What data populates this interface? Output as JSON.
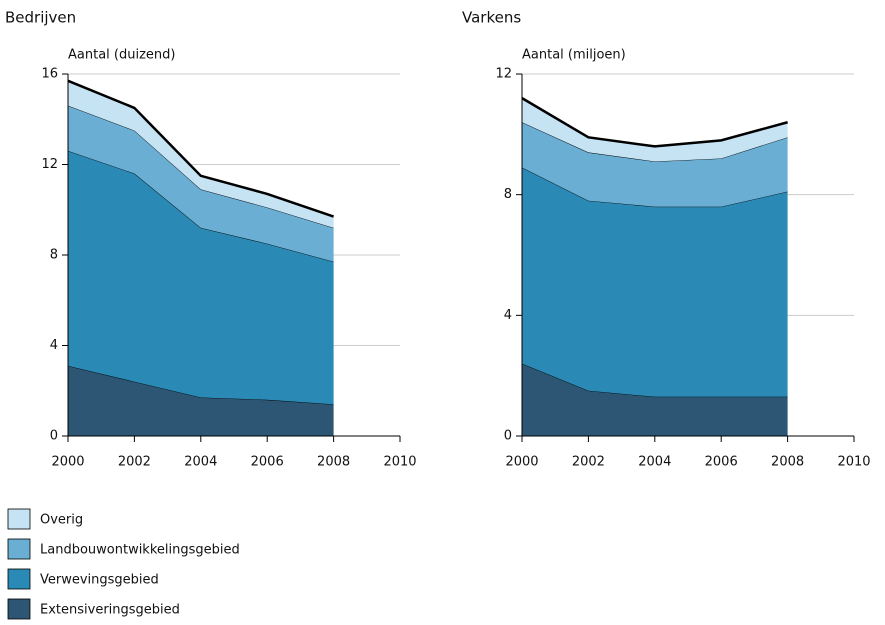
{
  "chart_data": [
    {
      "type": "area",
      "title": "Bedrijven",
      "ylabel": "Aantal (duizend)",
      "x": [
        2000,
        2002,
        2004,
        2006,
        2008
      ],
      "series": [
        {
          "name": "Extensiveringsgebied",
          "color": "#2c5673",
          "values": [
            3.1,
            2.4,
            1.7,
            1.6,
            1.4
          ]
        },
        {
          "name": "Verwevingsgebied",
          "color": "#2a8ab5",
          "values": [
            9.5,
            9.2,
            7.5,
            6.9,
            6.3
          ]
        },
        {
          "name": "Landbouwontwikkelingsgebied",
          "color": "#6aaed3",
          "values": [
            2.0,
            1.9,
            1.7,
            1.6,
            1.5
          ]
        },
        {
          "name": "Overig",
          "color": "#c6e3f4",
          "values": [
            1.1,
            1.0,
            0.6,
            0.6,
            0.5
          ]
        }
      ],
      "xlim": [
        2000,
        2010
      ],
      "xticks": [
        2000,
        2002,
        2004,
        2006,
        2008,
        2010
      ],
      "ylim": [
        0,
        16
      ],
      "yticks": [
        0,
        4,
        8,
        12,
        16
      ],
      "grid": true
    },
    {
      "type": "area",
      "title": "Varkens",
      "ylabel": "Aantal (miljoen)",
      "x": [
        2000,
        2002,
        2004,
        2006,
        2008
      ],
      "series": [
        {
          "name": "Extensiveringsgebied",
          "color": "#2c5673",
          "values": [
            2.4,
            1.5,
            1.3,
            1.3,
            1.3
          ]
        },
        {
          "name": "Verwevingsgebied",
          "color": "#2a8ab5",
          "values": [
            6.5,
            6.3,
            6.3,
            6.3,
            6.8
          ]
        },
        {
          "name": "Landbouwontwikkelingsgebied",
          "color": "#6aaed3",
          "values": [
            1.5,
            1.6,
            1.5,
            1.6,
            1.8
          ]
        },
        {
          "name": "Overig",
          "color": "#c6e3f4",
          "values": [
            0.8,
            0.5,
            0.5,
            0.6,
            0.5
          ]
        }
      ],
      "xlim": [
        2000,
        2010
      ],
      "xticks": [
        2000,
        2002,
        2004,
        2006,
        2008,
        2010
      ],
      "ylim": [
        0,
        12
      ],
      "yticks": [
        0,
        4,
        8,
        12
      ],
      "grid": true
    }
  ]
}
